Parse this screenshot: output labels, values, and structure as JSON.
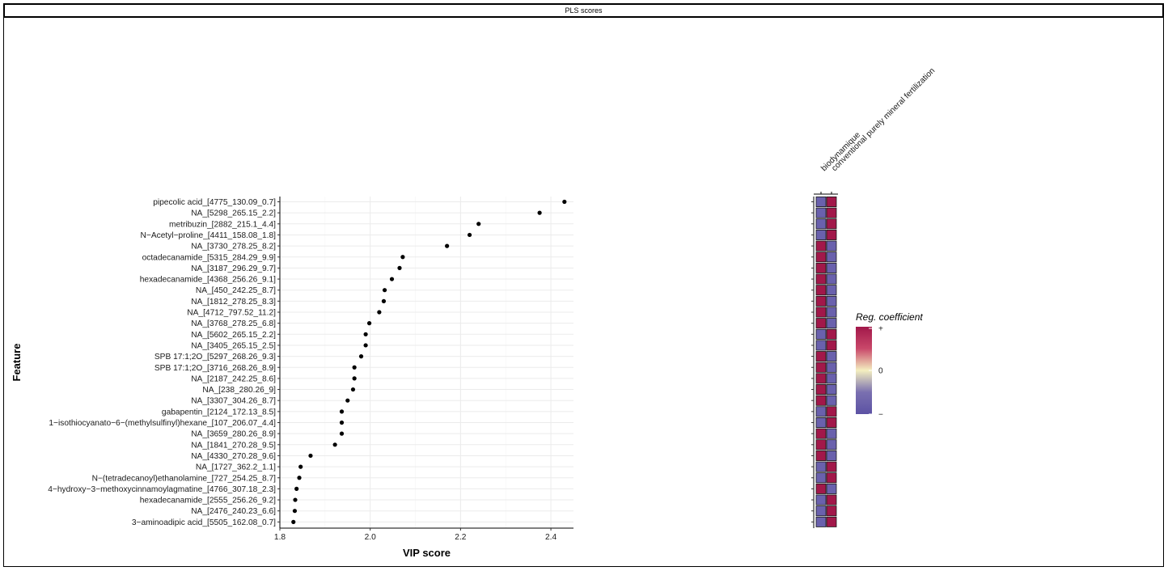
{
  "header": {
    "title": "PLS scores"
  },
  "chart_data": {
    "type": "scatter",
    "xlabel": "VIP score",
    "ylabel": "Feature",
    "xlim": [
      1.8,
      2.45
    ],
    "xticks": [
      "1.8",
      "2.0",
      "2.2",
      "2.4"
    ],
    "grid": true,
    "features": [
      "pipecolic acid_[4775_130.09_0.7]",
      "NA_[5298_265.15_2.2]",
      "metribuzin_[2882_215.1_4.4]",
      "N−Acetyl−proline_[4411_158.08_1.8]",
      "NA_[3730_278.25_8.2]",
      "octadecanamide_[5315_284.29_9.9]",
      "NA_[3187_296.29_9.7]",
      "hexadecanamide_[4368_256.26_9.1]",
      "NA_[450_242.25_8.7]",
      "NA_[1812_278.25_8.3]",
      "NA_[4712_797.52_11.2]",
      "NA_[3768_278.25_6.8]",
      "NA_[5602_265.15_2.2]",
      "NA_[3405_265.15_2.5]",
      "SPB 17:1;2O_[5297_268.26_9.3]",
      "SPB 17:1;2O_[3716_268.26_8.9]",
      "NA_[2187_242.25_8.6]",
      "NA_[238_280.26_9]",
      "NA_[3307_304.26_8.7]",
      "gabapentin_[2124_172.13_8.5]",
      "1−isothiocyanato−6−(methylsulfinyl)hexane_[107_206.07_4.4]",
      "NA_[3659_280.26_8.9]",
      "NA_[1841_270.28_9.5]",
      "NA_[4330_270.28_9.6]",
      "NA_[1727_362.2_1.1]",
      "N−(tetradecanoyl)ethanolamine_[727_254.25_8.7]",
      "4−hydroxy−3−methoxycinnamoylagmatine_[4766_307.18_2.3]",
      "hexadecanamide_[2555_256.26_9.2]",
      "NA_[2476_240.23_6.6]",
      "3−aminoadipic acid_[5505_162.08_0.7]"
    ],
    "vip": [
      2.43,
      2.375,
      2.24,
      2.22,
      2.17,
      2.072,
      2.065,
      2.048,
      2.032,
      2.03,
      2.02,
      1.998,
      1.99,
      1.99,
      1.98,
      1.965,
      1.965,
      1.962,
      1.95,
      1.937,
      1.937,
      1.937,
      1.922,
      1.868,
      1.846,
      1.843,
      1.837,
      1.834,
      1.833,
      1.83
    ],
    "heatmap": {
      "columns": [
        "biodynamique",
        "conventional purely mineral fertilization"
      ],
      "signs": [
        [
          "neg",
          "pos"
        ],
        [
          "neg",
          "pos"
        ],
        [
          "neg",
          "pos"
        ],
        [
          "neg",
          "pos"
        ],
        [
          "pos",
          "neg"
        ],
        [
          "pos",
          "neg"
        ],
        [
          "pos",
          "neg"
        ],
        [
          "pos",
          "neg"
        ],
        [
          "pos",
          "neg"
        ],
        [
          "pos",
          "neg"
        ],
        [
          "pos",
          "neg"
        ],
        [
          "pos",
          "neg"
        ],
        [
          "neg",
          "pos"
        ],
        [
          "neg",
          "pos"
        ],
        [
          "pos",
          "neg"
        ],
        [
          "pos",
          "neg"
        ],
        [
          "pos",
          "neg"
        ],
        [
          "pos",
          "neg"
        ],
        [
          "pos",
          "neg"
        ],
        [
          "neg",
          "pos"
        ],
        [
          "neg",
          "pos"
        ],
        [
          "pos",
          "neg"
        ],
        [
          "pos",
          "neg"
        ],
        [
          "pos",
          "neg"
        ],
        [
          "neg",
          "pos"
        ],
        [
          "neg",
          "pos"
        ],
        [
          "pos",
          "neg"
        ],
        [
          "neg",
          "pos"
        ],
        [
          "neg",
          "pos"
        ],
        [
          "neg",
          "pos"
        ]
      ]
    },
    "legend": {
      "title": "Reg. coefficient",
      "labels": [
        "+",
        "0",
        "−"
      ],
      "placement": "right",
      "colors": [
        "#a2184a",
        "#c9486a",
        "#f4efc0",
        "#7a70b0",
        "#5c52a4"
      ]
    }
  },
  "colors": {
    "positive": "#a2184a",
    "negative": "#6a61ad",
    "point": "#000000",
    "grid": "#ebebeb"
  }
}
